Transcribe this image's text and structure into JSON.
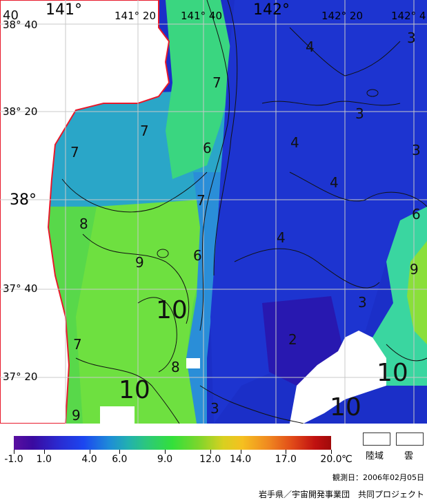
{
  "map": {
    "lon_labels": [
      {
        "text": "141°",
        "cls": "big"
      },
      {
        "text": "141° 20",
        "cls": ""
      },
      {
        "text": "141° 40",
        "cls": ""
      },
      {
        "text": "142°",
        "cls": "big"
      },
      {
        "text": "142° 20",
        "cls": ""
      },
      {
        "text": "142° 4",
        "cls": ""
      }
    ],
    "lat_labels": [
      {
        "text": "38° 40",
        "cls": ""
      },
      {
        "text": "38° 20",
        "cls": ""
      },
      {
        "text": "38°",
        "cls": "big"
      },
      {
        "text": "37° 40",
        "cls": ""
      },
      {
        "text": "37° 20",
        "cls": ""
      }
    ],
    "contour_labels": [
      "40",
      "4",
      "3",
      "7",
      "3",
      "7",
      "6",
      "4",
      "3",
      "7",
      "4",
      "8",
      "7",
      "6",
      "4",
      "9",
      "6",
      "9",
      "10",
      "3",
      "2",
      "7",
      "8",
      "10",
      "10",
      "10",
      "9",
      "3"
    ],
    "colors": {
      "land": "#ffffff",
      "coast": "#e8182a",
      "cloud": "#ffffff",
      "grid": "#c8c8c8"
    }
  },
  "legend": {
    "ticks": [
      "-1.0",
      "1.0",
      "4.0",
      "6.0",
      "9.0",
      "12.0",
      "14.0",
      "17.0",
      "20.0"
    ],
    "tick_values": [
      -1.0,
      1.0,
      4.0,
      6.0,
      9.0,
      12.0,
      14.0,
      17.0,
      20.0
    ],
    "range": [
      -1.0,
      20.0
    ],
    "unit": "℃",
    "land_label": "陸域",
    "cloud_label": "雲"
  },
  "observation": "観測日：2006年02月05日",
  "credit": "岩手県／宇宙開発事業団　共同プロジェクト"
}
